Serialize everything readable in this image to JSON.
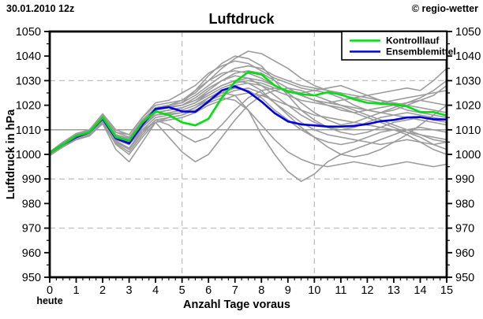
{
  "header": {
    "datetime": "30.01.2010 12z",
    "credit": "© regio-wetter",
    "title": "Luftdruck"
  },
  "legend": {
    "items": [
      {
        "label": "Kontrolllauf",
        "color": "#00e010"
      },
      {
        "label": "Ensemblemittel",
        "color": "#0000e0"
      }
    ]
  },
  "footnote": {
    "today_label": "heute"
  },
  "chart_data": {
    "type": "line",
    "title": "Luftdruck",
    "xlabel": "Anzahl Tage voraus",
    "ylabel": "Luftdruck in hPa",
    "xlim": [
      0,
      15
    ],
    "ylim": [
      950,
      1050
    ],
    "x_tick_labels": [
      0,
      1,
      2,
      3,
      4,
      5,
      6,
      7,
      8,
      9,
      10,
      11,
      12,
      13,
      14,
      15
    ],
    "y_tick_labels": [
      950,
      960,
      970,
      980,
      990,
      1000,
      1010,
      1020,
      1030,
      1040,
      1050
    ],
    "x_minor_step": 0.25,
    "y_minor_step": 5,
    "grid": {
      "h_dashed": [
        970,
        990,
        1030
      ],
      "h_solid": [
        1010
      ],
      "v_dashed": [
        5,
        10
      ]
    },
    "colors": {
      "ensemble": "#9c9c9c",
      "kontrolllauf": "#00e010",
      "ensemblemittel": "#0000e0",
      "grid_dashed": "#c0c0c0",
      "grid_solid": "#7d7d7d",
      "axis": "#000000"
    },
    "legend_position": "top-right",
    "x": [
      0,
      0.5,
      1,
      1.5,
      2,
      2.5,
      3,
      3.5,
      4,
      4.5,
      5,
      5.5,
      6,
      6.5,
      7,
      7.5,
      8,
      8.5,
      9,
      9.5,
      10,
      10.5,
      11,
      11.5,
      12,
      12.5,
      13,
      13.5,
      14,
      14.5,
      15
    ],
    "series": [
      {
        "name": "Kontrolllauf",
        "role": "control",
        "values": [
          1000.5,
          1004,
          1007.5,
          1009,
          1015,
          1007,
          1005.5,
          1013,
          1017.5,
          1016,
          1013,
          1011.8,
          1014.5,
          1023,
          1029.5,
          1033.5,
          1032.5,
          1028,
          1025.5,
          1024.5,
          1024,
          1025.3,
          1024.4,
          1022.4,
          1021,
          1020.6,
          1020.4,
          1019.5,
          1017.2,
          1017.2,
          1015.8
        ]
      },
      {
        "name": "Ensemblemittel",
        "role": "mean",
        "values": [
          1000.5,
          1004,
          1007,
          1009,
          1014.5,
          1006.5,
          1004.5,
          1012,
          1018.5,
          1019.2,
          1017.5,
          1017.3,
          1021.5,
          1026,
          1027.7,
          1025.5,
          1021.5,
          1016.8,
          1013.4,
          1012.2,
          1011.8,
          1011.3,
          1011.3,
          1011.6,
          1012.3,
          1013.5,
          1014,
          1015,
          1015.2,
          1014.3,
          1014.2
        ]
      }
    ],
    "ensemble_members": [
      [
        1001,
        1004.5,
        1008,
        1010,
        1016,
        1009,
        1008,
        1015,
        1020,
        1021,
        1022,
        1025,
        1030,
        1035,
        1039,
        1042,
        1041,
        1038,
        1035,
        1031,
        1028,
        1026,
        1024,
        1023,
        1022,
        1021,
        1022,
        1023,
        1024,
        1025,
        1026
      ],
      [
        1000,
        1003.5,
        1007,
        1009,
        1015.5,
        1008,
        1006,
        1014,
        1019,
        1020,
        1021,
        1026,
        1032,
        1037,
        1040,
        1039,
        1036,
        1030,
        1024,
        1018,
        1014,
        1011,
        1010,
        1011,
        1013,
        1015,
        1016,
        1017,
        1016,
        1015,
        1014
      ],
      [
        1000.5,
        1004,
        1008,
        1010,
        1016.5,
        1010,
        1008,
        1015,
        1021,
        1022,
        1025,
        1028,
        1033,
        1036,
        1038,
        1037,
        1034,
        1031,
        1029,
        1027,
        1026,
        1027,
        1028,
        1026,
        1024,
        1022,
        1020,
        1018,
        1017,
        1016,
        1015
      ],
      [
        1001,
        1005,
        1008.5,
        1010,
        1015,
        1008,
        1006,
        1013,
        1018,
        1019,
        1020,
        1022,
        1026,
        1030,
        1033,
        1034,
        1033,
        1030,
        1027,
        1024,
        1022,
        1021,
        1022,
        1023,
        1024,
        1025,
        1026,
        1027,
        1026,
        1030,
        1035
      ],
      [
        1000,
        1004,
        1007,
        1008.5,
        1014,
        1006,
        1004,
        1011,
        1017,
        1018,
        1019,
        1021,
        1024,
        1027,
        1029,
        1030,
        1029,
        1027,
        1026,
        1025,
        1026,
        1025,
        1023,
        1020,
        1018,
        1017,
        1018,
        1020,
        1022,
        1024,
        1028
      ],
      [
        1000.5,
        1004.5,
        1007.5,
        1009,
        1014.5,
        1007,
        1005,
        1012,
        1018,
        1019.5,
        1020,
        1023,
        1027,
        1030,
        1032,
        1031,
        1028,
        1024,
        1020,
        1016,
        1013,
        1011,
        1009,
        1008,
        1009,
        1011,
        1013,
        1014,
        1015,
        1014,
        1013
      ],
      [
        1000,
        1003.5,
        1006.5,
        1008,
        1013.5,
        1005,
        1002,
        1009,
        1014,
        1012,
        1008,
        1005,
        1007,
        1012,
        1018,
        1023,
        1026,
        1027,
        1026,
        1024,
        1022,
        1021,
        1020,
        1019,
        1018,
        1017,
        1016,
        1015,
        1014,
        1013,
        1012
      ],
      [
        1000.5,
        1004,
        1007,
        1008.5,
        1014,
        1006,
        1004,
        1011,
        1016,
        1017,
        1018,
        1020,
        1023,
        1025,
        1024,
        1018,
        1008,
        1000,
        993,
        989,
        992,
        997,
        1000,
        1002,
        1004,
        1006,
        1008,
        1010,
        1011,
        1010,
        1009
      ],
      [
        1001,
        1005,
        1008,
        1009.5,
        1015,
        1007,
        1004,
        1010,
        1013,
        1007,
        1001,
        997,
        1000,
        1007,
        1014,
        1020,
        1024,
        1026,
        1027,
        1026,
        1024,
        1022,
        1020,
        1018,
        1016,
        1014,
        1012,
        1010,
        1008,
        1006,
        1005
      ],
      [
        1000,
        1003.5,
        1006.5,
        1008,
        1013,
        1004.5,
        1001,
        1008,
        1014,
        1015,
        1016,
        1018,
        1021,
        1023,
        1022,
        1018,
        1012,
        1006,
        1001,
        998,
        996,
        995,
        996,
        997,
        996,
        995,
        996,
        997,
        996,
        995,
        996
      ],
      [
        1000.5,
        1004,
        1007,
        1008.5,
        1014,
        1006.5,
        1004.5,
        1011.5,
        1016,
        1016.5,
        1017,
        1019,
        1022,
        1025,
        1027,
        1026,
        1023,
        1018,
        1014,
        1010,
        1007,
        1005,
        1004,
        1005,
        1007,
        1009,
        1010,
        1008,
        1005,
        1002,
        1000
      ],
      [
        1000,
        1003,
        1006,
        1007.5,
        1012.5,
        1002,
        997,
        1005,
        1013,
        1015,
        1016,
        1019,
        1023,
        1026,
        1028,
        1029,
        1028,
        1026,
        1024,
        1022,
        1021,
        1020,
        1019,
        1017,
        1015,
        1013,
        1011,
        1009,
        1007,
        1004,
        1002
      ],
      [
        1001,
        1004.5,
        1008,
        1010,
        1016,
        1009,
        1007,
        1014,
        1019,
        1020,
        1021,
        1024,
        1028,
        1032,
        1035,
        1036,
        1035,
        1032,
        1030,
        1028,
        1027,
        1026,
        1025,
        1024,
        1023,
        1022,
        1021,
        1020,
        1019,
        1018,
        1017
      ],
      [
        1000,
        1004,
        1007.5,
        1009,
        1015,
        1007.5,
        1006,
        1013,
        1018,
        1019,
        1020,
        1022,
        1025,
        1028,
        1030,
        1031,
        1030,
        1028,
        1026,
        1024,
        1022,
        1020,
        1018,
        1017,
        1018,
        1019,
        1020,
        1021,
        1022,
        1021,
        1020
      ],
      [
        1000.5,
        1004.5,
        1007.5,
        1009,
        1014.5,
        1007,
        1005,
        1012,
        1017,
        1018,
        1019,
        1021,
        1025,
        1028,
        1030,
        1029,
        1026,
        1021,
        1016,
        1011,
        1007,
        1003,
        1000,
        999,
        1000,
        1002,
        1005,
        1008,
        1012,
        1016,
        1020
      ],
      [
        1000,
        1003.5,
        1006.5,
        1008,
        1013.5,
        1005.5,
        1002.5,
        1010,
        1015,
        1016,
        1017,
        1019,
        1022,
        1024,
        1026,
        1027,
        1025,
        1021,
        1017,
        1013,
        1010,
        1008,
        1007,
        1006,
        1005,
        1004,
        1005,
        1006,
        1005,
        1004,
        1005
      ],
      [
        1001,
        1004.5,
        1008,
        1009.5,
        1015.5,
        1008,
        1006.5,
        1013.5,
        1018.5,
        1020,
        1022,
        1026,
        1030,
        1033,
        1034,
        1033,
        1031,
        1028,
        1025,
        1021,
        1017,
        1014,
        1012,
        1013,
        1015,
        1017,
        1019,
        1021,
        1023,
        1026,
        1030
      ],
      [
        999.5,
        1003,
        1006,
        1007.5,
        1013,
        1004,
        1000,
        1007,
        1013,
        1014,
        1015,
        1017,
        1020,
        1022,
        1024,
        1025,
        1024,
        1022,
        1020,
        1018,
        1016,
        1015,
        1014,
        1013,
        1012,
        1011,
        1010,
        1009,
        1008,
        1007,
        1006
      ]
    ]
  }
}
